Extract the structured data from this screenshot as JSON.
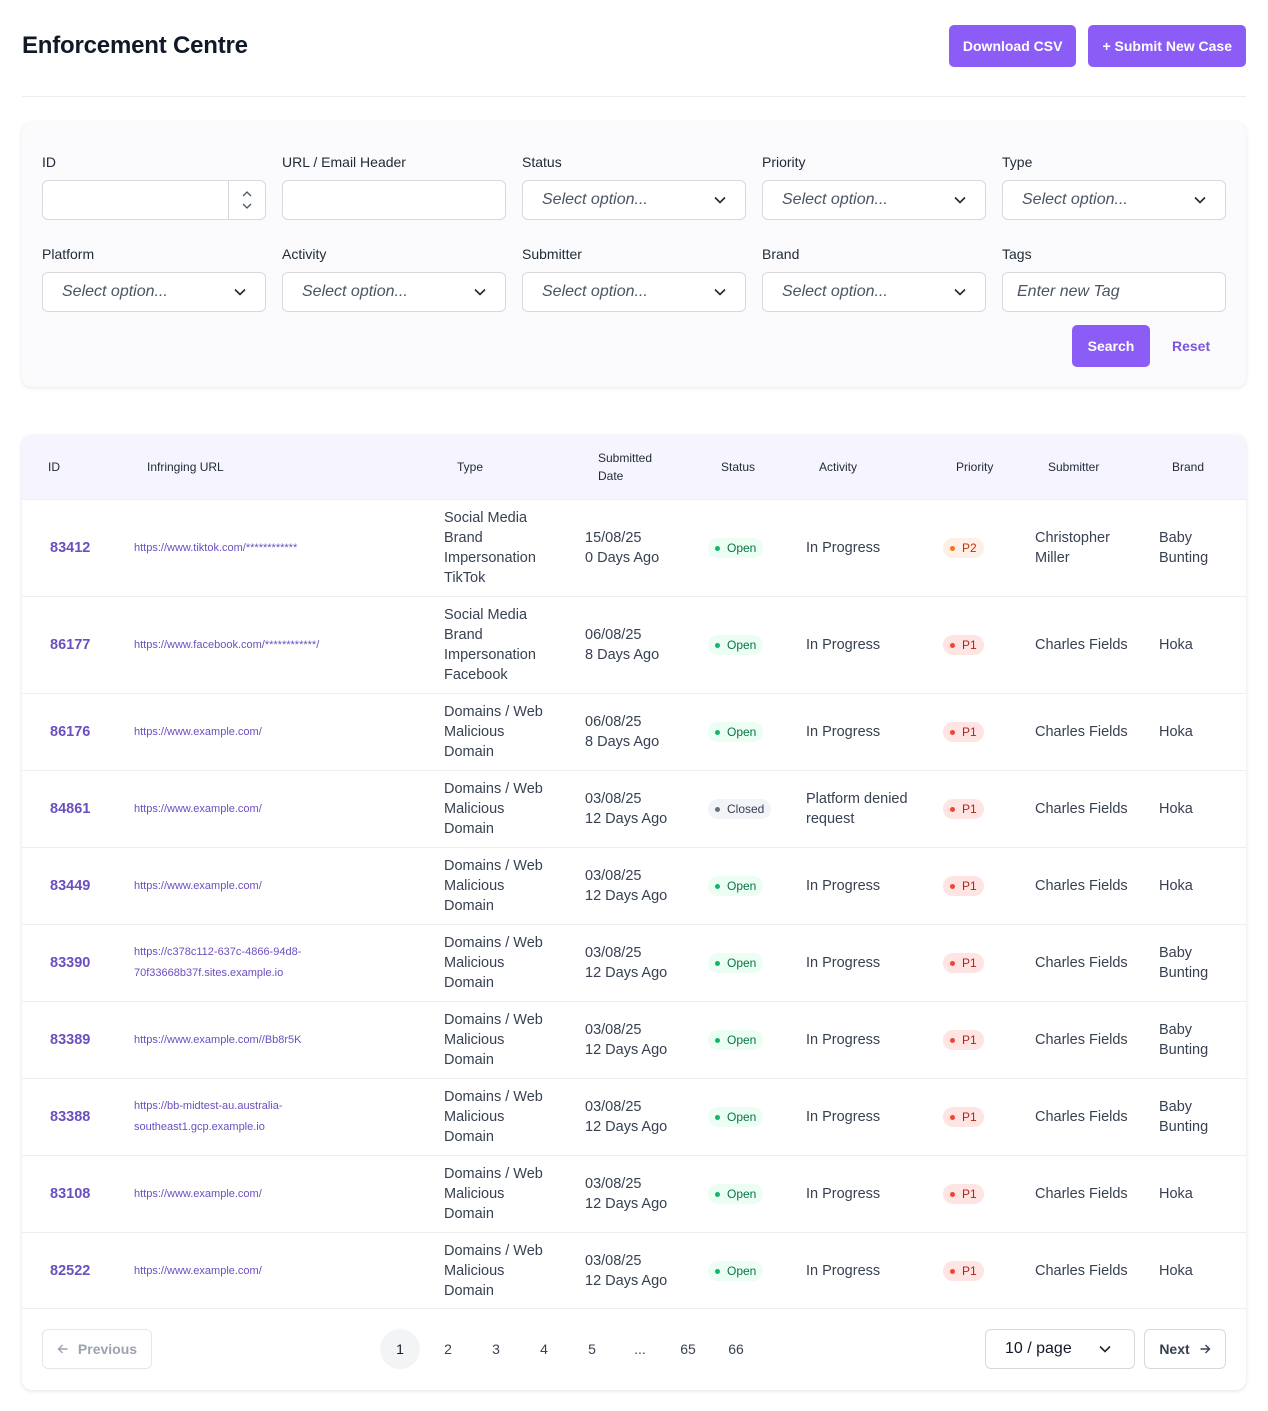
{
  "header": {
    "title": "Enforcement Centre",
    "download_label": "Download CSV",
    "submit_label": "+ Submit New Case"
  },
  "filters": {
    "id_label": "ID",
    "url_label": "URL / Email Header",
    "status_label": "Status",
    "priority_label": "Priority",
    "type_label": "Type",
    "platform_label": "Platform",
    "activity_label": "Activity",
    "submitter_label": "Submitter",
    "brand_label": "Brand",
    "tags_label": "Tags",
    "select_placeholder": "Select option...",
    "tags_placeholder": "Enter new Tag",
    "search_label": "Search",
    "reset_label": "Reset"
  },
  "table": {
    "columns": {
      "id": "ID",
      "url": "Infringing URL",
      "type": "Type",
      "submitted_1": "Submitted",
      "submitted_2": "Date",
      "status": "Status",
      "activity": "Activity",
      "priority": "Priority",
      "submitter": "Submitter",
      "brand": "Brand"
    },
    "rows": [
      {
        "id": "83412",
        "url_1": "https://www.tiktok.com/************",
        "url_2": "",
        "type_1": "Social Media",
        "type_2": "Brand",
        "type_3": "Impersonation",
        "type_4": "TikTok",
        "date": "15/08/25",
        "ago": "0 Days Ago",
        "status": "Open",
        "activity_1": "In Progress",
        "activity_2": "",
        "priority": "P2",
        "submitter_1": "Christopher",
        "submitter_2": "Miller",
        "brand_1": "Baby",
        "brand_2": "Bunting"
      },
      {
        "id": "86177",
        "url_1": "https://www.facebook.com/************/",
        "url_2": "",
        "type_1": "Social Media",
        "type_2": "Brand",
        "type_3": "Impersonation",
        "type_4": "Facebook",
        "date": "06/08/25",
        "ago": "8 Days Ago",
        "status": "Open",
        "activity_1": "In Progress",
        "activity_2": "",
        "priority": "P1",
        "submitter_1": "Charles Fields",
        "submitter_2": "",
        "brand_1": "Hoka",
        "brand_2": ""
      },
      {
        "id": "86176",
        "url_1": "https://www.example.com/",
        "url_2": "",
        "type_1": "Domains / Web",
        "type_2": "Malicious",
        "type_3": "Domain",
        "type_4": "",
        "date": "06/08/25",
        "ago": "8 Days Ago",
        "status": "Open",
        "activity_1": "In Progress",
        "activity_2": "",
        "priority": "P1",
        "submitter_1": "Charles Fields",
        "submitter_2": "",
        "brand_1": "Hoka",
        "brand_2": ""
      },
      {
        "id": "84861",
        "url_1": "https://www.example.com/",
        "url_2": "",
        "type_1": "Domains / Web",
        "type_2": "Malicious",
        "type_3": "Domain",
        "type_4": "",
        "date": "03/08/25",
        "ago": "12 Days Ago",
        "status": "Closed",
        "activity_1": "Platform denied",
        "activity_2": "request",
        "priority": "P1",
        "submitter_1": "Charles Fields",
        "submitter_2": "",
        "brand_1": "Hoka",
        "brand_2": ""
      },
      {
        "id": "83449",
        "url_1": "https://www.example.com/",
        "url_2": "",
        "type_1": "Domains / Web",
        "type_2": "Malicious",
        "type_3": "Domain",
        "type_4": "",
        "date": "03/08/25",
        "ago": "12 Days Ago",
        "status": "Open",
        "activity_1": "In Progress",
        "activity_2": "",
        "priority": "P1",
        "submitter_1": "Charles Fields",
        "submitter_2": "",
        "brand_1": "Hoka",
        "brand_2": ""
      },
      {
        "id": "83390",
        "url_1": "https://c378c112-637c-4866-94d8-",
        "url_2": "70f33668b37f.sites.example.io",
        "type_1": "Domains / Web",
        "type_2": "Malicious",
        "type_3": "Domain",
        "type_4": "",
        "date": "03/08/25",
        "ago": "12 Days Ago",
        "status": "Open",
        "activity_1": "In Progress",
        "activity_2": "",
        "priority": "P1",
        "submitter_1": "Charles Fields",
        "submitter_2": "",
        "brand_1": "Baby",
        "brand_2": "Bunting"
      },
      {
        "id": "83389",
        "url_1": "https://www.example.com//Bb8r5K",
        "url_2": "",
        "type_1": "Domains / Web",
        "type_2": "Malicious",
        "type_3": "Domain",
        "type_4": "",
        "date": "03/08/25",
        "ago": "12 Days Ago",
        "status": "Open",
        "activity_1": "In Progress",
        "activity_2": "",
        "priority": "P1",
        "submitter_1": "Charles Fields",
        "submitter_2": "",
        "brand_1": "Baby",
        "brand_2": "Bunting"
      },
      {
        "id": "83388",
        "url_1": "https://bb-midtest-au.australia-",
        "url_2": "southeast1.gcp.example.io",
        "type_1": "Domains / Web",
        "type_2": "Malicious",
        "type_3": "Domain",
        "type_4": "",
        "date": "03/08/25",
        "ago": "12 Days Ago",
        "status": "Open",
        "activity_1": "In Progress",
        "activity_2": "",
        "priority": "P1",
        "submitter_1": "Charles Fields",
        "submitter_2": "",
        "brand_1": "Baby",
        "brand_2": "Bunting"
      },
      {
        "id": "83108",
        "url_1": "https://www.example.com/",
        "url_2": "",
        "type_1": "Domains / Web",
        "type_2": "Malicious",
        "type_3": "Domain",
        "type_4": "",
        "date": "03/08/25",
        "ago": "12 Days Ago",
        "status": "Open",
        "activity_1": "In Progress",
        "activity_2": "",
        "priority": "P1",
        "submitter_1": "Charles Fields",
        "submitter_2": "",
        "brand_1": "Hoka",
        "brand_2": ""
      },
      {
        "id": "82522",
        "url_1": "https://www.example.com/",
        "url_2": "",
        "type_1": "Domains / Web",
        "type_2": "Malicious",
        "type_3": "Domain",
        "type_4": "",
        "date": "03/08/25",
        "ago": "12 Days Ago",
        "status": "Open",
        "activity_1": "In Progress",
        "activity_2": "",
        "priority": "P1",
        "submitter_1": "Charles Fields",
        "submitter_2": "",
        "brand_1": "Hoka",
        "brand_2": ""
      }
    ]
  },
  "pagination": {
    "previous_label": "Previous",
    "next_label": "Next",
    "pages": [
      "1",
      "2",
      "3",
      "4",
      "5",
      "...",
      "65",
      "66"
    ],
    "current_page": "1",
    "page_size_label": "10 / page"
  },
  "icons": {
    "chevron": "chevron-down-icon",
    "arrow_left": "arrow-left-icon",
    "arrow_right": "arrow-right-icon"
  },
  "colors": {
    "accent": "#8b5cf6",
    "link": "#6b4fc0"
  }
}
